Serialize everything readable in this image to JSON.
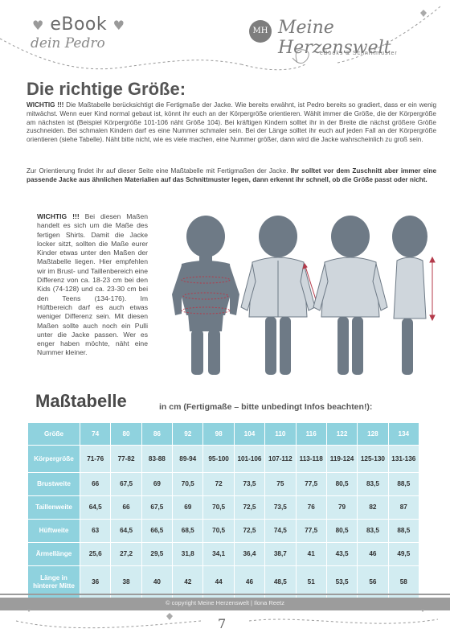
{
  "header": {
    "ebook": "eBook",
    "subtitle": "dein Pedro",
    "logo_initials": "MH",
    "brand": "Meine Herzenswelt",
    "tagline": "eBooks & Schnittmuster"
  },
  "title": "Die richtige Größe:",
  "intro": {
    "bold_lead": "WICHTIG !!!",
    "text": " Die Maßtabelle berücksichtigt die Fertigmaße der Jacke. Wie bereits erwähnt, ist Pedro bereits so gradiert, dass er ein wenig mitwächst. Wenn euer Kind normal gebaut ist, könnt ihr euch an der Körpergröße orientieren. Wählt immer die Größe, die der Körpergröße am nächsten ist (Beispiel Körpergröße 101-106 näht Größe 104). Bei kräftigen Kindern solltet ihr in der Breite die nächst größere Größe zuschneiden. Bei schmalen Kindern darf es eine Nummer schmaler sein. Bei der Länge solltet ihr euch auf jeden Fall an der Körpergröße orientieren (siehe Tabelle). Näht bitte nicht, wie es viele machen, eine Nummer größer, dann wird die Jacke wahrscheinlich zu groß sein."
  },
  "orientation": {
    "text": "Zur Orientierung findet ihr auf dieser Seite eine Maßtabelle mit Fertigmaßen der Jacke. ",
    "bold": "Ihr solltet vor dem Zuschnitt aber immer eine passende Jacke aus ähnlichen Materialien auf das Schnittmuster legen, dann erkennt ihr schnell, ob die Größe passt oder nicht."
  },
  "side_note": {
    "bold_lead": "WICHTIG !!!",
    "text": " Bei diesen Maßen handelt es sich um die Maße des fertigen Shirts. Damit die Jacke locker sitzt, sollten die Maße eurer Kinder etwas unter den Maßen der Maßtabelle liegen. Hier empfehlen wir im Brust- und Taillenbereich eine Differenz von ca. 18-23 cm bei den Kids (74-128) und ca. 23-30 cm bei den Teens (134-176). Im Hüftbereich darf es auch etwas weniger Differenz sein. Mit diesen Maßen sollte auch noch ein Pulli unter die Jacke passen. Wer es enger haben möchte, näht eine Nummer kleiner."
  },
  "table": {
    "title": "Maßtabelle",
    "subtitle": "in cm (Fertigmaße – bitte unbedingt Infos beachten!):",
    "header_label": "Größe",
    "sizes": [
      "74",
      "80",
      "86",
      "92",
      "98",
      "104",
      "110",
      "116",
      "122",
      "128",
      "134"
    ],
    "rows": [
      {
        "label": "Körpergröße",
        "values": [
          "71-76",
          "77-82",
          "83-88",
          "89-94",
          "95-100",
          "101-106",
          "107-112",
          "113-118",
          "119-124",
          "125-130",
          "131-136"
        ]
      },
      {
        "label": "Brustweite",
        "values": [
          "66",
          "67,5",
          "69",
          "70,5",
          "72",
          "73,5",
          "75",
          "77,5",
          "80,5",
          "83,5",
          "88,5"
        ]
      },
      {
        "label": "Taillenweite",
        "values": [
          "64,5",
          "66",
          "67,5",
          "69",
          "70,5",
          "72,5",
          "73,5",
          "76",
          "79",
          "82",
          "87"
        ]
      },
      {
        "label": "Hüftweite",
        "values": [
          "63",
          "64,5",
          "66,5",
          "68,5",
          "70,5",
          "72,5",
          "74,5",
          "77,5",
          "80,5",
          "83,5",
          "88,5"
        ]
      },
      {
        "label": "Ärmellänge",
        "values": [
          "25,6",
          "27,2",
          "29,5",
          "31,8",
          "34,1",
          "36,4",
          "38,7",
          "41",
          "43,5",
          "46",
          "49,5"
        ]
      },
      {
        "label": "Länge in hinterer Mitte",
        "values": [
          "36",
          "38",
          "40",
          "42",
          "44",
          "46",
          "48,5",
          "51",
          "53,5",
          "56",
          "58"
        ]
      }
    ]
  },
  "footer": {
    "copyright": "© copyright Meine Herzenswelt | Ilona Reetz",
    "page_number": "7"
  },
  "colors": {
    "table_header": "#8fd2de",
    "table_cell": "#d2ecf1",
    "figure_gray": "#6e7a86",
    "arrow_red": "#b43a4a"
  }
}
